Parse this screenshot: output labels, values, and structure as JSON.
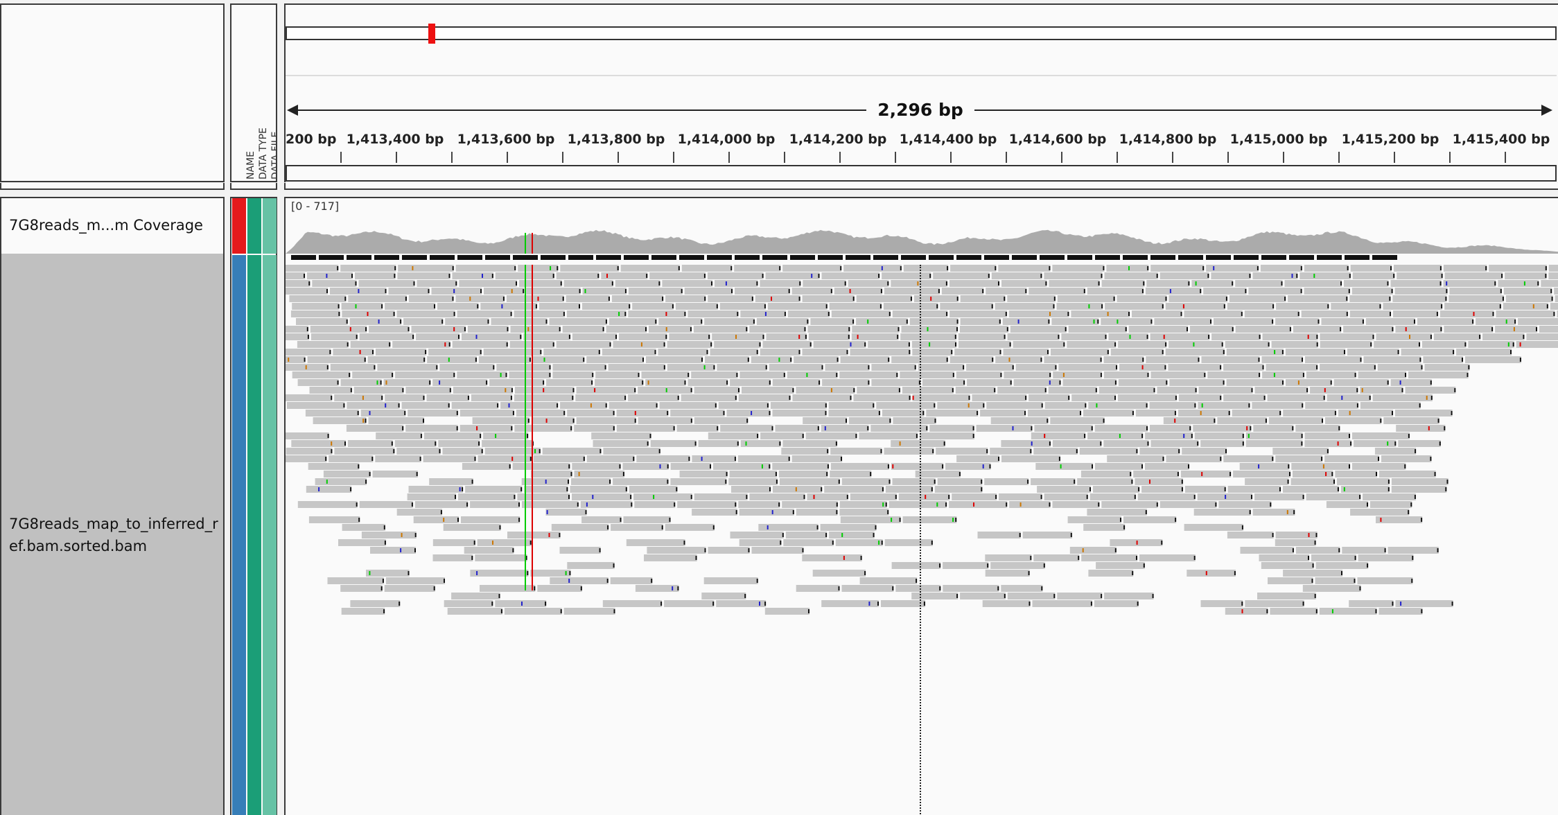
{
  "header": {
    "attribute_labels": [
      "NAME",
      "DATA TYPE",
      "DATA FILE"
    ]
  },
  "ruler": {
    "span_label": "2,296 bp",
    "ticks": [
      {
        "label": "200 bp"
      },
      {
        "label": "1,413,400 bp"
      },
      {
        "label": "1,413,600 bp"
      },
      {
        "label": "1,413,800 bp"
      },
      {
        "label": "1,414,000 bp"
      },
      {
        "label": "1,414,200 bp"
      },
      {
        "label": "1,414,400 bp"
      },
      {
        "label": "1,414,600 bp"
      },
      {
        "label": "1,414,800 bp"
      },
      {
        "label": "1,415,000 bp"
      },
      {
        "label": "1,415,200 bp"
      },
      {
        "label": "1,415,400 bp"
      }
    ]
  },
  "tracks": {
    "coverage": {
      "name": "7G8reads_m...m Coverage",
      "range_label": "[0 - 717]"
    },
    "alignment": {
      "name_line1": "7G8reads_map_to_inferred_r",
      "name_line2": "ef.bam.sorted.bam"
    }
  },
  "colors": {
    "read_gray": "#c6c6c6",
    "coverage_gray": "#ababab",
    "attr_red": "#e41a1c",
    "attr_blue": "#377eb8",
    "attr_green": "#1b9e77",
    "attr_lightgreen": "#66c2a5",
    "mismatch_green": "#00cc00",
    "mismatch_red": "#dd0000"
  }
}
